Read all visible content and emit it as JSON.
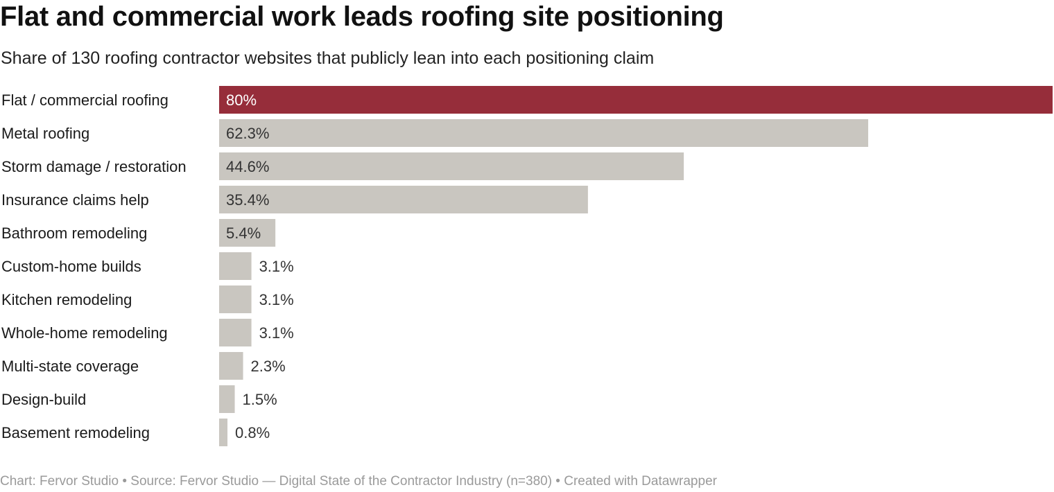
{
  "title": "Flat and commercial work leads roofing site positioning",
  "subtitle": "Share of 130 roofing contractor websites that publicly lean into each positioning claim",
  "footer": "Chart: Fervor Studio • Source: Fervor Studio — Digital State of the Contractor Industry (n=380) • Created with Datawrapper",
  "colors": {
    "highlight": "#962d3a",
    "default": "#c9c6c0",
    "label_on_highlight": "#ffffff",
    "label_default": "#333333",
    "category_text": "#1a1a1a"
  },
  "chart_data": {
    "type": "bar",
    "orientation": "horizontal",
    "title": "Flat and commercial work leads roofing site positioning",
    "subtitle": "Share of 130 roofing contractor websites that publicly lean into each positioning claim",
    "xlim": [
      0,
      80
    ],
    "grid": false,
    "unit": "%",
    "categories": [
      "Flat / commercial roofing",
      "Metal roofing",
      "Storm damage / restoration",
      "Insurance claims help",
      "Bathroom remodeling",
      "Custom-home builds",
      "Kitchen remodeling",
      "Whole-home remodeling",
      "Multi-state coverage",
      "Design-build",
      "Basement remodeling"
    ],
    "values": [
      80,
      62.3,
      44.6,
      35.4,
      5.4,
      3.1,
      3.1,
      3.1,
      2.3,
      1.5,
      0.8
    ],
    "value_labels": [
      "80%",
      "62.3%",
      "44.6%",
      "35.4%",
      "5.4%",
      "3.1%",
      "3.1%",
      "3.1%",
      "2.3%",
      "1.5%",
      "0.8%"
    ],
    "highlighted": [
      "Flat / commercial roofing"
    ]
  }
}
